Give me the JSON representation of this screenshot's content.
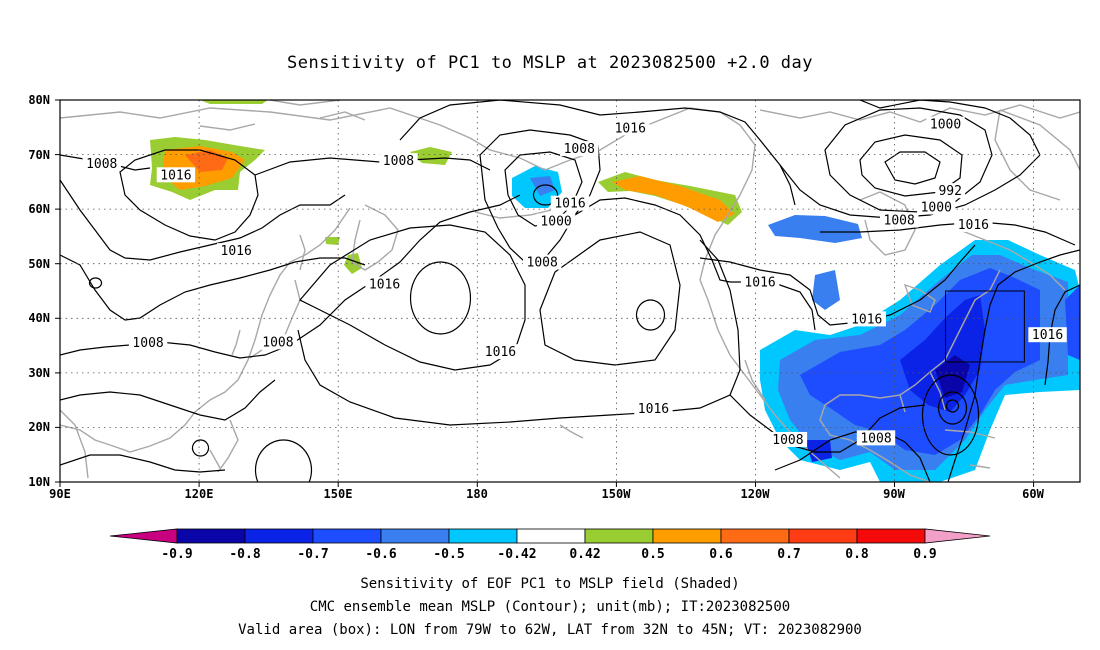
{
  "title": "Sensitivity of PC1 to MSLP at 2023082500 +2.0 day",
  "map": {
    "lat_labels": [
      "80N",
      "70N",
      "60N",
      "50N",
      "40N",
      "30N",
      "20N",
      "10N"
    ],
    "lon_labels": [
      "90E",
      "120E",
      "150E",
      "180",
      "150W",
      "120W",
      "90W",
      "60W"
    ],
    "lon_range_deg": [
      90,
      310
    ],
    "lat_range_deg": [
      10,
      80
    ],
    "grid": "dotted",
    "contour_color": "#000000",
    "coast_color": "#a8a8a8",
    "contour_labels": [
      {
        "text": "1016",
        "lon": 213,
        "lat": 74.8
      },
      {
        "text": "1000",
        "lon": 281,
        "lat": 75.5
      },
      {
        "text": "1008",
        "lon": 99,
        "lat": 68.3
      },
      {
        "text": "1016",
        "lon": 115,
        "lat": 66.2
      },
      {
        "text": "1008",
        "lon": 163,
        "lat": 68.8
      },
      {
        "text": "1008",
        "lon": 202,
        "lat": 71.0
      },
      {
        "text": "992",
        "lon": 282,
        "lat": 63.3
      },
      {
        "text": "1016",
        "lon": 200,
        "lat": 61.0
      },
      {
        "text": "1000",
        "lon": 279,
        "lat": 60.3
      },
      {
        "text": "1000",
        "lon": 197,
        "lat": 57.7
      },
      {
        "text": "1008",
        "lon": 271,
        "lat": 57.9
      },
      {
        "text": "1016",
        "lon": 287,
        "lat": 57.1
      },
      {
        "text": "1016",
        "lon": 128,
        "lat": 52.3
      },
      {
        "text": "1008",
        "lon": 194,
        "lat": 50.2
      },
      {
        "text": "1016",
        "lon": 160,
        "lat": 46.2
      },
      {
        "text": "1016",
        "lon": 241,
        "lat": 46.6
      },
      {
        "text": "1016",
        "lon": 264,
        "lat": 39.8
      },
      {
        "text": "1016",
        "lon": 303,
        "lat": 36.9
      },
      {
        "text": "1008",
        "lon": 109,
        "lat": 35.5
      },
      {
        "text": "1008",
        "lon": 137,
        "lat": 35.6
      },
      {
        "text": "1016",
        "lon": 185,
        "lat": 33.8
      },
      {
        "text": "1016",
        "lon": 218,
        "lat": 23.4
      },
      {
        "text": "1008",
        "lon": 247,
        "lat": 17.7
      },
      {
        "text": "1008",
        "lon": 266,
        "lat": 18.0
      }
    ],
    "valid_box": {
      "lon_min": 281,
      "lon_max": 298,
      "lat_min": 32,
      "lat_max": 45
    }
  },
  "colorbar": {
    "tick_labels": [
      "-0.9",
      "-0.8",
      "-0.7",
      "-0.6",
      "-0.5",
      "-0.42",
      "0.42",
      "0.5",
      "0.6",
      "0.7",
      "0.8",
      "0.9"
    ],
    "low_end_color": "#c8007f",
    "high_end_color": "#f2a0c8",
    "colors": [
      "#0a05a8",
      "#0a23e6",
      "#1e4cff",
      "#3a7ff0",
      "#00c8ff",
      "#ffffff",
      "#9acd32",
      "#ff9d00",
      "#ff6a14",
      "#ff3c14",
      "#f50a0a"
    ]
  },
  "caption": {
    "line1": "Sensitivity of EOF PC1 to MSLP field (Shaded)",
    "line2": "CMC ensemble mean MSLP (Contour); unit(mb); IT:2023082500",
    "line3": "Valid area (box): LON from 79W to 62W, LAT from 32N to 45N; VT: 2023082900"
  }
}
